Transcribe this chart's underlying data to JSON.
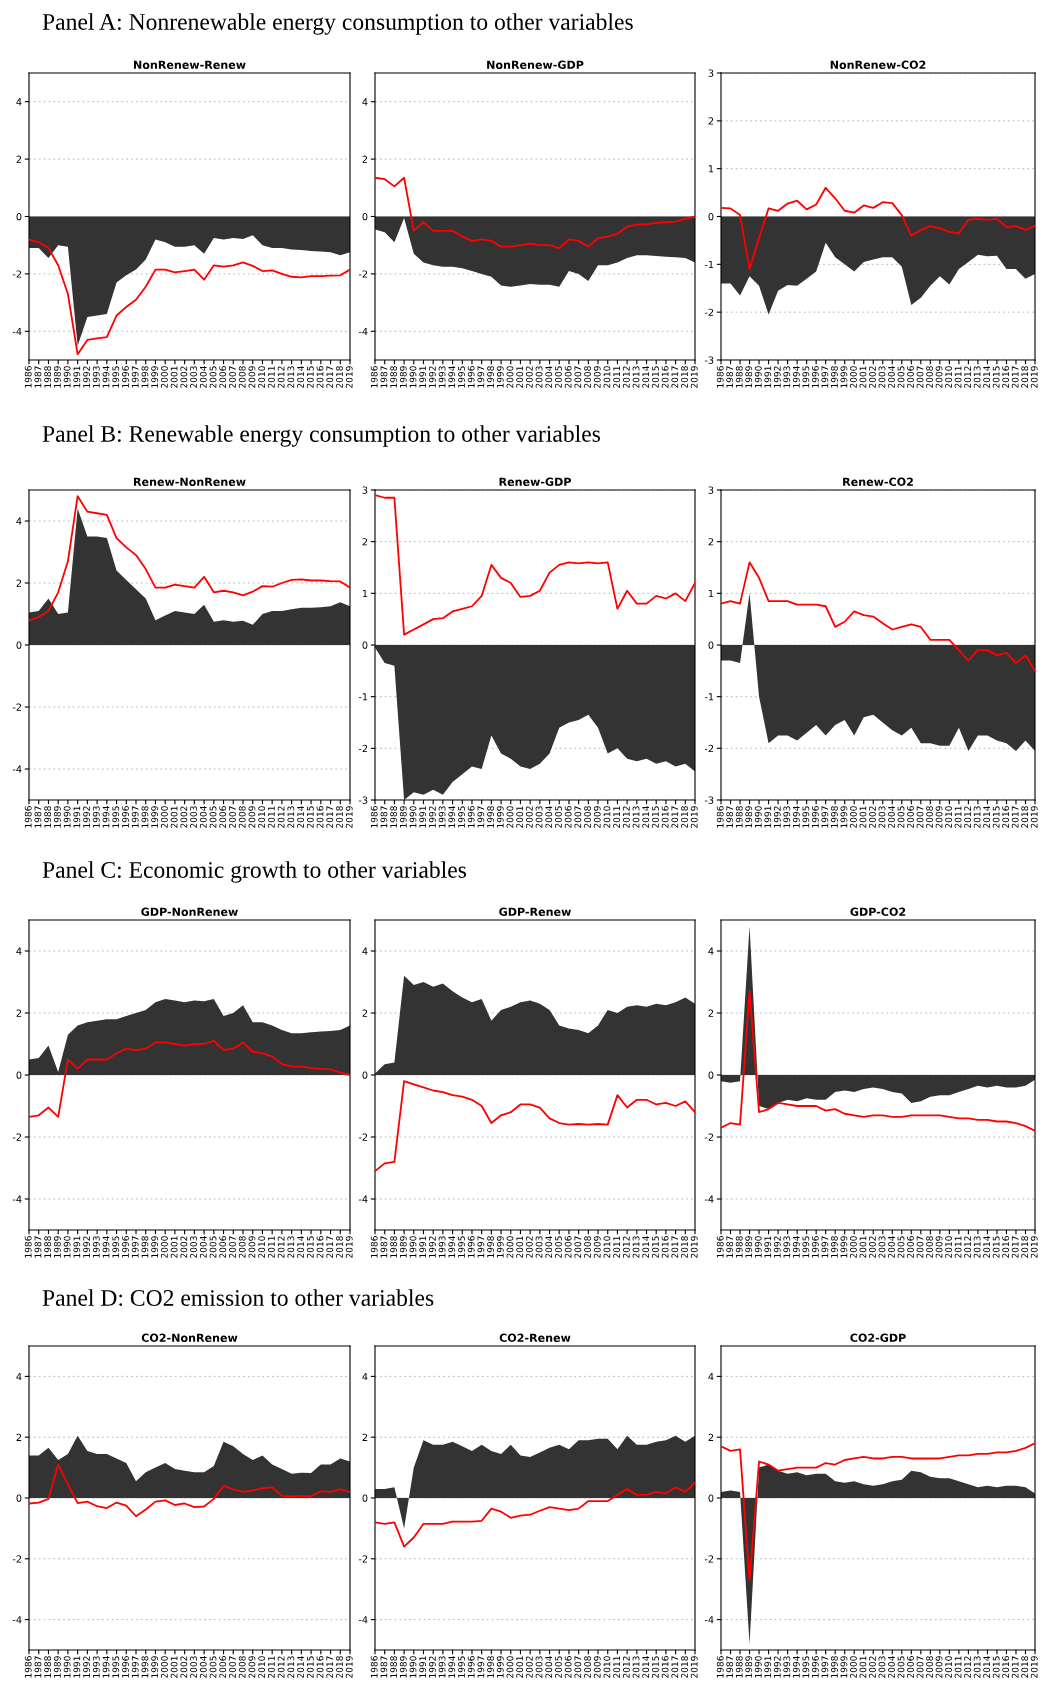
{
  "chart_data": [
    {
      "type": "area",
      "subtitle": "Panel A: Nonrenewable energy consumption to other variables",
      "title": "NonRenew-Renew",
      "categories": [
        "1986",
        "1987",
        "1988",
        "1989",
        "1990",
        "1991",
        "1992",
        "1993",
        "1994",
        "1995",
        "1996",
        "1997",
        "1998",
        "1999",
        "2000",
        "2001",
        "2002",
        "2003",
        "2004",
        "2005",
        "2006",
        "2007",
        "2008",
        "2009",
        "2010",
        "2011",
        "2012",
        "2013",
        "2014",
        "2015",
        "2016",
        "2017",
        "2018",
        "2019"
      ],
      "ylim": [
        -5,
        5
      ],
      "yticks": [
        -4,
        -2,
        0,
        2,
        4
      ],
      "grid": "y",
      "series": [
        {
          "color": "#333333",
          "values": [
            -1.1,
            -1.1,
            -1.45,
            -1.0,
            -1.05,
            -4.5,
            -3.5,
            -3.45,
            -3.4,
            -2.3,
            -2.05,
            -1.85,
            -1.5,
            -0.8,
            -0.9,
            -1.05,
            -1.05,
            -1.0,
            -1.3,
            -0.75,
            -0.8,
            -0.75,
            -0.78,
            -0.65,
            -1.0,
            -1.1,
            -1.1,
            -1.15,
            -1.17,
            -1.2,
            -1.22,
            -1.25,
            -1.35,
            -1.25
          ]
        },
        {
          "type": "line",
          "color": "#ff0000",
          "values": [
            -0.8,
            -0.9,
            -1.1,
            -1.7,
            -2.7,
            -4.8,
            -4.3,
            -4.25,
            -4.2,
            -3.45,
            -3.15,
            -2.9,
            -2.45,
            -1.85,
            -1.85,
            -1.95,
            -1.9,
            -1.85,
            -2.2,
            -1.7,
            -1.75,
            -1.7,
            -1.6,
            -1.72,
            -1.9,
            -1.88,
            -2.0,
            -2.1,
            -2.12,
            -2.08,
            -2.08,
            -2.06,
            -2.05,
            -1.85
          ]
        }
      ]
    },
    {
      "type": "area",
      "title": "NonRenew-GDP",
      "categories": [
        "1986",
        "1987",
        "1988",
        "1989",
        "1990",
        "1991",
        "1992",
        "1993",
        "1994",
        "1995",
        "1996",
        "1997",
        "1998",
        "1999",
        "2000",
        "2001",
        "2002",
        "2003",
        "2004",
        "2005",
        "2006",
        "2007",
        "2008",
        "2009",
        "2010",
        "2011",
        "2012",
        "2013",
        "2014",
        "2015",
        "2016",
        "2017",
        "2018",
        "2019"
      ],
      "ylim": [
        -5,
        5
      ],
      "yticks": [
        -4,
        -2,
        0,
        2,
        4
      ],
      "grid": "y",
      "series": [
        {
          "color": "#333333",
          "values": [
            -0.45,
            -0.55,
            -0.9,
            -0.05,
            -1.3,
            -1.6,
            -1.7,
            -1.75,
            -1.75,
            -1.8,
            -1.9,
            -2.0,
            -2.1,
            -2.4,
            -2.45,
            -2.4,
            -2.35,
            -2.38,
            -2.38,
            -2.45,
            -1.9,
            -2.0,
            -2.25,
            -1.7,
            -1.7,
            -1.6,
            -1.45,
            -1.35,
            -1.35,
            -1.38,
            -1.4,
            -1.42,
            -1.45,
            -1.6
          ]
        },
        {
          "type": "line",
          "color": "#ff0000",
          "values": [
            1.35,
            1.3,
            1.05,
            1.35,
            -0.5,
            -0.2,
            -0.5,
            -0.5,
            -0.5,
            -0.7,
            -0.85,
            -0.8,
            -0.85,
            -1.05,
            -1.05,
            -1.0,
            -0.95,
            -1.0,
            -1.0,
            -1.1,
            -0.8,
            -0.85,
            -1.05,
            -0.75,
            -0.7,
            -0.6,
            -0.35,
            -0.28,
            -0.27,
            -0.22,
            -0.2,
            -0.18,
            -0.08,
            0.0
          ]
        }
      ]
    },
    {
      "type": "area",
      "title": "NonRenew-CO2",
      "categories": [
        "1986",
        "1987",
        "1988",
        "1989",
        "1990",
        "1991",
        "1992",
        "1993",
        "1994",
        "1995",
        "1996",
        "1997",
        "1998",
        "1999",
        "2000",
        "2001",
        "2002",
        "2003",
        "2004",
        "2005",
        "2006",
        "2007",
        "2008",
        "2009",
        "2010",
        "2011",
        "2012",
        "2013",
        "2014",
        "2015",
        "2016",
        "2017",
        "2018",
        "2019"
      ],
      "ylim": [
        -3,
        3
      ],
      "yticks": [
        -3,
        -2,
        -1,
        0,
        1,
        2,
        3
      ],
      "grid": "y",
      "series": [
        {
          "color": "#333333",
          "values": [
            -1.4,
            -1.4,
            -1.65,
            -1.25,
            -1.45,
            -2.05,
            -1.55,
            -1.43,
            -1.45,
            -1.3,
            -1.15,
            -0.55,
            -0.85,
            -1.0,
            -1.15,
            -0.95,
            -0.9,
            -0.85,
            -0.85,
            -1.05,
            -1.85,
            -1.7,
            -1.45,
            -1.25,
            -1.42,
            -1.1,
            -0.95,
            -0.8,
            -0.83,
            -0.82,
            -1.1,
            -1.1,
            -1.3,
            -1.2
          ]
        },
        {
          "type": "line",
          "color": "#ff0000",
          "values": [
            0.18,
            0.17,
            0.03,
            -1.1,
            -0.45,
            0.17,
            0.12,
            0.27,
            0.33,
            0.15,
            0.25,
            0.6,
            0.38,
            0.12,
            0.08,
            0.23,
            0.18,
            0.3,
            0.28,
            0.03,
            -0.4,
            -0.28,
            -0.2,
            -0.25,
            -0.32,
            -0.35,
            -0.07,
            -0.05,
            -0.07,
            -0.05,
            -0.22,
            -0.2,
            -0.28,
            -0.2
          ]
        }
      ]
    },
    {
      "type": "area",
      "subtitle": "Panel B: Renewable energy consumption to other variables",
      "title": "Renew-NonRenew",
      "categories": [
        "1986",
        "1987",
        "1988",
        "1989",
        "1990",
        "1991",
        "1992",
        "1993",
        "1994",
        "1995",
        "1996",
        "1997",
        "1998",
        "1999",
        "2000",
        "2001",
        "2002",
        "2003",
        "2004",
        "2005",
        "2006",
        "2007",
        "2008",
        "2009",
        "2010",
        "2011",
        "2012",
        "2013",
        "2014",
        "2015",
        "2016",
        "2017",
        "2018",
        "2019"
      ],
      "ylim": [
        -5,
        5
      ],
      "yticks": [
        -4,
        -2,
        0,
        2,
        4
      ],
      "grid": "y",
      "series": [
        {
          "color": "#333333",
          "values": [
            1.05,
            1.1,
            1.5,
            1.0,
            1.05,
            4.4,
            3.5,
            3.5,
            3.45,
            2.4,
            2.1,
            1.8,
            1.5,
            0.8,
            0.95,
            1.1,
            1.05,
            1.0,
            1.3,
            0.75,
            0.8,
            0.75,
            0.78,
            0.65,
            1.0,
            1.1,
            1.1,
            1.15,
            1.2,
            1.2,
            1.22,
            1.25,
            1.38,
            1.25
          ]
        },
        {
          "type": "line",
          "color": "#ff0000",
          "values": [
            0.8,
            0.9,
            1.1,
            1.7,
            2.7,
            4.8,
            4.3,
            4.25,
            4.2,
            3.45,
            3.15,
            2.9,
            2.45,
            1.85,
            1.85,
            1.95,
            1.9,
            1.85,
            2.2,
            1.7,
            1.75,
            1.7,
            1.6,
            1.72,
            1.9,
            1.88,
            2.0,
            2.1,
            2.12,
            2.08,
            2.08,
            2.06,
            2.05,
            1.85
          ]
        }
      ]
    },
    {
      "type": "area",
      "title": "Renew-GDP",
      "categories": [
        "1986",
        "1987",
        "1988",
        "1989",
        "1990",
        "1991",
        "1992",
        "1993",
        "1994",
        "1995",
        "1996",
        "1997",
        "1998",
        "1999",
        "2000",
        "2001",
        "2002",
        "2003",
        "2004",
        "2005",
        "2006",
        "2007",
        "2008",
        "2009",
        "2010",
        "2011",
        "2012",
        "2013",
        "2014",
        "2015",
        "2016",
        "2017",
        "2018",
        "2019"
      ],
      "ylim": [
        -3,
        3
      ],
      "yticks": [
        -3,
        -2,
        -1,
        0,
        1,
        2,
        3
      ],
      "grid": "y",
      "series": [
        {
          "color": "#333333",
          "values": [
            -0.05,
            -0.35,
            -0.4,
            -3.0,
            -2.85,
            -2.9,
            -2.8,
            -2.9,
            -2.65,
            -2.5,
            -2.35,
            -2.4,
            -1.75,
            -2.1,
            -2.2,
            -2.35,
            -2.4,
            -2.3,
            -2.1,
            -1.6,
            -1.5,
            -1.45,
            -1.35,
            -1.6,
            -2.1,
            -2.0,
            -2.2,
            -2.25,
            -2.2,
            -2.3,
            -2.25,
            -2.35,
            -2.3,
            -2.45
          ]
        },
        {
          "type": "line",
          "color": "#ff0000",
          "values": [
            2.9,
            2.85,
            2.85,
            0.2,
            0.3,
            0.4,
            0.5,
            0.52,
            0.65,
            0.7,
            0.75,
            0.95,
            1.55,
            1.3,
            1.2,
            0.93,
            0.95,
            1.05,
            1.4,
            1.55,
            1.6,
            1.58,
            1.6,
            1.58,
            1.6,
            0.7,
            1.05,
            0.8,
            0.8,
            0.95,
            0.9,
            1.0,
            0.85,
            1.2
          ]
        }
      ]
    },
    {
      "type": "area",
      "title": "Renew-CO2",
      "categories": [
        "1986",
        "1987",
        "1988",
        "1989",
        "1990",
        "1991",
        "1992",
        "1993",
        "1994",
        "1995",
        "1996",
        "1997",
        "1998",
        "1999",
        "2000",
        "2001",
        "2002",
        "2003",
        "2004",
        "2005",
        "2006",
        "2007",
        "2008",
        "2009",
        "2010",
        "2011",
        "2012",
        "2013",
        "2014",
        "2015",
        "2016",
        "2017",
        "2018",
        "2019"
      ],
      "ylim": [
        -3,
        3
      ],
      "yticks": [
        -3,
        -2,
        -1,
        0,
        1,
        2,
        3
      ],
      "grid": "y",
      "series": [
        {
          "color": "#333333",
          "values": [
            -0.3,
            -0.3,
            -0.35,
            1.0,
            -1.0,
            -1.9,
            -1.75,
            -1.75,
            -1.85,
            -1.7,
            -1.55,
            -1.75,
            -1.55,
            -1.45,
            -1.75,
            -1.4,
            -1.35,
            -1.5,
            -1.65,
            -1.75,
            -1.6,
            -1.9,
            -1.9,
            -1.95,
            -1.95,
            -1.6,
            -2.05,
            -1.75,
            -1.75,
            -1.85,
            -1.9,
            -2.05,
            -1.85,
            -2.05
          ]
        },
        {
          "type": "line",
          "color": "#ff0000",
          "values": [
            0.8,
            0.85,
            0.8,
            1.6,
            1.3,
            0.85,
            0.85,
            0.85,
            0.78,
            0.78,
            0.78,
            0.75,
            0.35,
            0.45,
            0.65,
            0.58,
            0.55,
            0.42,
            0.3,
            0.35,
            0.4,
            0.35,
            0.1,
            0.1,
            0.1,
            -0.1,
            -0.3,
            -0.1,
            -0.1,
            -0.2,
            -0.15,
            -0.35,
            -0.2,
            -0.5
          ]
        }
      ]
    },
    {
      "type": "area",
      "subtitle": "Panel C: Economic growth to other variables",
      "title": "GDP-NonRenew",
      "categories": [
        "1986",
        "1987",
        "1988",
        "1989",
        "1990",
        "1991",
        "1992",
        "1993",
        "1994",
        "1995",
        "1996",
        "1997",
        "1998",
        "1999",
        "2000",
        "2001",
        "2002",
        "2003",
        "2004",
        "2005",
        "2006",
        "2007",
        "2008",
        "2009",
        "2010",
        "2011",
        "2012",
        "2013",
        "2014",
        "2015",
        "2016",
        "2017",
        "2018",
        "2019"
      ],
      "ylim": [
        -5,
        5
      ],
      "yticks": [
        -4,
        -2,
        0,
        2,
        4
      ],
      "grid": "y",
      "series": [
        {
          "color": "#333333",
          "values": [
            0.5,
            0.55,
            0.95,
            0.1,
            1.3,
            1.6,
            1.7,
            1.75,
            1.8,
            1.8,
            1.9,
            2.0,
            2.1,
            2.35,
            2.45,
            2.4,
            2.35,
            2.4,
            2.38,
            2.45,
            1.9,
            2.0,
            2.25,
            1.7,
            1.7,
            1.6,
            1.45,
            1.35,
            1.35,
            1.38,
            1.4,
            1.42,
            1.45,
            1.6
          ]
        },
        {
          "type": "line",
          "color": "#ff0000",
          "values": [
            -1.35,
            -1.3,
            -1.05,
            -1.35,
            0.5,
            0.2,
            0.5,
            0.5,
            0.5,
            0.7,
            0.85,
            0.8,
            0.85,
            1.05,
            1.05,
            1.0,
            0.95,
            1.0,
            1.0,
            1.1,
            0.8,
            0.85,
            1.05,
            0.75,
            0.7,
            0.6,
            0.35,
            0.28,
            0.27,
            0.22,
            0.2,
            0.18,
            0.08,
            0.0
          ]
        }
      ]
    },
    {
      "type": "area",
      "title": "GDP-Renew",
      "categories": [
        "1986",
        "1987",
        "1988",
        "1989",
        "1990",
        "1991",
        "1992",
        "1993",
        "1994",
        "1995",
        "1996",
        "1997",
        "1998",
        "1999",
        "2000",
        "2001",
        "2002",
        "2003",
        "2004",
        "2005",
        "2006",
        "2007",
        "2008",
        "2009",
        "2010",
        "2011",
        "2012",
        "2013",
        "2014",
        "2015",
        "2016",
        "2017",
        "2018",
        "2019"
      ],
      "ylim": [
        -5,
        5
      ],
      "yticks": [
        -4,
        -2,
        0,
        2,
        4
      ],
      "grid": "y",
      "series": [
        {
          "color": "#333333",
          "values": [
            0.05,
            0.35,
            0.4,
            3.2,
            2.9,
            3.0,
            2.85,
            2.95,
            2.7,
            2.5,
            2.35,
            2.45,
            1.75,
            2.1,
            2.2,
            2.35,
            2.4,
            2.3,
            2.1,
            1.6,
            1.5,
            1.45,
            1.35,
            1.6,
            2.1,
            2.0,
            2.2,
            2.25,
            2.2,
            2.3,
            2.25,
            2.35,
            2.5,
            2.3
          ]
        },
        {
          "type": "line",
          "color": "#ff0000",
          "values": [
            -3.1,
            -2.85,
            -2.8,
            -0.2,
            -0.3,
            -0.4,
            -0.5,
            -0.55,
            -0.65,
            -0.7,
            -0.8,
            -1.0,
            -1.55,
            -1.3,
            -1.2,
            -0.95,
            -0.95,
            -1.05,
            -1.4,
            -1.55,
            -1.6,
            -1.58,
            -1.6,
            -1.58,
            -1.6,
            -0.65,
            -1.05,
            -0.8,
            -0.8,
            -0.95,
            -0.9,
            -1.0,
            -0.85,
            -1.2
          ]
        }
      ]
    },
    {
      "type": "area",
      "title": "GDP-CO2",
      "categories": [
        "1986",
        "1987",
        "1988",
        "1989",
        "1990",
        "1991",
        "1992",
        "1993",
        "1994",
        "1995",
        "1996",
        "1997",
        "1998",
        "1999",
        "2000",
        "2001",
        "2002",
        "2003",
        "2004",
        "2005",
        "2006",
        "2007",
        "2008",
        "2009",
        "2010",
        "2011",
        "2012",
        "2013",
        "2014",
        "2015",
        "2016",
        "2017",
        "2018",
        "2019"
      ],
      "ylim": [
        -5,
        5
      ],
      "yticks": [
        -4,
        -2,
        0,
        2,
        4
      ],
      "grid": "y",
      "series": [
        {
          "color": "#333333",
          "values": [
            -0.2,
            -0.25,
            -0.2,
            4.8,
            -1.0,
            -1.1,
            -0.9,
            -0.8,
            -0.85,
            -0.75,
            -0.8,
            -0.8,
            -0.55,
            -0.5,
            -0.55,
            -0.45,
            -0.4,
            -0.45,
            -0.55,
            -0.6,
            -0.9,
            -0.85,
            -0.7,
            -0.65,
            -0.65,
            -0.55,
            -0.45,
            -0.35,
            -0.4,
            -0.35,
            -0.4,
            -0.4,
            -0.35,
            -0.15
          ]
        },
        {
          "type": "line",
          "color": "#ff0000",
          "values": [
            -1.7,
            -1.55,
            -1.6,
            2.7,
            -1.2,
            -1.1,
            -0.9,
            -0.95,
            -1.0,
            -1.0,
            -1.0,
            -1.15,
            -1.1,
            -1.25,
            -1.3,
            -1.35,
            -1.3,
            -1.3,
            -1.35,
            -1.35,
            -1.3,
            -1.3,
            -1.3,
            -1.3,
            -1.35,
            -1.4,
            -1.4,
            -1.45,
            -1.45,
            -1.5,
            -1.5,
            -1.55,
            -1.65,
            -1.8
          ]
        }
      ]
    },
    {
      "type": "area",
      "subtitle": "Panel D: CO2 emission to other variables",
      "title": "CO2-NonRenew",
      "categories": [
        "1986",
        "1987",
        "1988",
        "1989",
        "1990",
        "1991",
        "1992",
        "1993",
        "1994",
        "1995",
        "1996",
        "1997",
        "1998",
        "1999",
        "2000",
        "2001",
        "2002",
        "2003",
        "2004",
        "2005",
        "2006",
        "2007",
        "2008",
        "2009",
        "2010",
        "2011",
        "2012",
        "2013",
        "2014",
        "2015",
        "2016",
        "2017",
        "2018",
        "2019"
      ],
      "ylim": [
        -5,
        5
      ],
      "yticks": [
        -4,
        -2,
        0,
        2,
        4
      ],
      "grid": "y",
      "series": [
        {
          "color": "#333333",
          "values": [
            1.4,
            1.4,
            1.65,
            1.25,
            1.45,
            2.05,
            1.55,
            1.45,
            1.45,
            1.3,
            1.15,
            0.55,
            0.85,
            1.0,
            1.15,
            0.95,
            0.9,
            0.85,
            0.85,
            1.05,
            1.85,
            1.7,
            1.45,
            1.25,
            1.4,
            1.1,
            0.95,
            0.8,
            0.83,
            0.82,
            1.1,
            1.1,
            1.3,
            1.2
          ]
        },
        {
          "type": "line",
          "color": "#ff0000",
          "values": [
            -0.18,
            -0.15,
            -0.03,
            1.1,
            0.45,
            -0.17,
            -0.12,
            -0.27,
            -0.33,
            -0.15,
            -0.25,
            -0.6,
            -0.38,
            -0.12,
            -0.08,
            -0.23,
            -0.18,
            -0.3,
            -0.28,
            -0.03,
            0.4,
            0.28,
            0.2,
            0.25,
            0.32,
            0.35,
            0.07,
            0.05,
            0.07,
            0.05,
            0.22,
            0.2,
            0.28,
            0.2
          ]
        }
      ]
    },
    {
      "type": "area",
      "title": "CO2-Renew",
      "categories": [
        "1986",
        "1987",
        "1988",
        "1989",
        "1990",
        "1991",
        "1992",
        "1993",
        "1994",
        "1995",
        "1996",
        "1997",
        "1998",
        "1999",
        "2000",
        "2001",
        "2002",
        "2003",
        "2004",
        "2005",
        "2006",
        "2007",
        "2008",
        "2009",
        "2010",
        "2011",
        "2012",
        "2013",
        "2014",
        "2015",
        "2016",
        "2017",
        "2018",
        "2019"
      ],
      "ylim": [
        -5,
        5
      ],
      "yticks": [
        -4,
        -2,
        0,
        2,
        4
      ],
      "grid": "y",
      "series": [
        {
          "color": "#333333",
          "values": [
            0.3,
            0.3,
            0.35,
            -1.0,
            1.0,
            1.9,
            1.75,
            1.75,
            1.85,
            1.7,
            1.55,
            1.75,
            1.55,
            1.45,
            1.75,
            1.4,
            1.35,
            1.5,
            1.65,
            1.75,
            1.6,
            1.9,
            1.9,
            1.95,
            1.95,
            1.6,
            2.05,
            1.75,
            1.75,
            1.85,
            1.9,
            2.05,
            1.85,
            2.05
          ]
        },
        {
          "type": "line",
          "color": "#ff0000",
          "values": [
            -0.8,
            -0.85,
            -0.8,
            -1.6,
            -1.3,
            -0.85,
            -0.85,
            -0.85,
            -0.78,
            -0.78,
            -0.78,
            -0.75,
            -0.35,
            -0.45,
            -0.65,
            -0.58,
            -0.55,
            -0.42,
            -0.3,
            -0.35,
            -0.4,
            -0.35,
            -0.1,
            -0.1,
            -0.1,
            0.1,
            0.3,
            0.1,
            0.1,
            0.2,
            0.15,
            0.35,
            0.2,
            0.5
          ]
        }
      ]
    },
    {
      "type": "area",
      "title": "CO2-GDP",
      "categories": [
        "1986",
        "1987",
        "1988",
        "1989",
        "1990",
        "1991",
        "1992",
        "1993",
        "1994",
        "1995",
        "1996",
        "1997",
        "1998",
        "1999",
        "2000",
        "2001",
        "2002",
        "2003",
        "2004",
        "2005",
        "2006",
        "2007",
        "2008",
        "2009",
        "2010",
        "2011",
        "2012",
        "2013",
        "2014",
        "2015",
        "2016",
        "2017",
        "2018",
        "2019"
      ],
      "ylim": [
        -5,
        5
      ],
      "yticks": [
        -4,
        -2,
        0,
        2,
        4
      ],
      "grid": "y",
      "series": [
        {
          "color": "#333333",
          "values": [
            0.2,
            0.25,
            0.2,
            -4.8,
            1.0,
            1.1,
            0.9,
            0.8,
            0.85,
            0.75,
            0.8,
            0.8,
            0.55,
            0.5,
            0.55,
            0.45,
            0.4,
            0.45,
            0.55,
            0.6,
            0.9,
            0.85,
            0.7,
            0.65,
            0.65,
            0.55,
            0.45,
            0.35,
            0.4,
            0.35,
            0.4,
            0.4,
            0.35,
            0.15
          ]
        },
        {
          "type": "line",
          "color": "#ff0000",
          "values": [
            1.7,
            1.55,
            1.6,
            -2.7,
            1.2,
            1.1,
            0.9,
            0.95,
            1.0,
            1.0,
            1.0,
            1.15,
            1.1,
            1.25,
            1.3,
            1.35,
            1.3,
            1.3,
            1.35,
            1.35,
            1.3,
            1.3,
            1.3,
            1.3,
            1.35,
            1.4,
            1.4,
            1.45,
            1.45,
            1.5,
            1.5,
            1.55,
            1.65,
            1.8
          ]
        }
      ]
    }
  ]
}
